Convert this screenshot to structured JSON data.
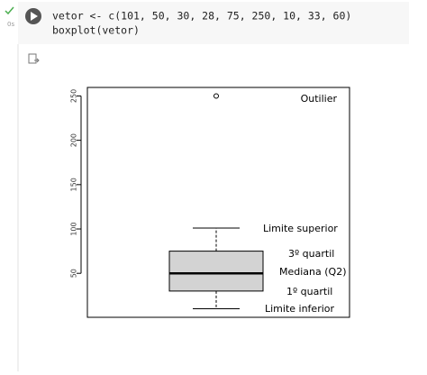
{
  "cell": {
    "status": "0s",
    "code": [
      "vetor <- c(101, 50, 30, 28, 75, 250, 10, 33, 60)",
      "boxplot(vetor)"
    ]
  },
  "chart_data": {
    "type": "boxplot",
    "boxes": [
      {
        "whisker_low": 10,
        "q1": 30,
        "median": 50,
        "q3": 75,
        "whisker_high": 101,
        "outliers": [
          250
        ]
      }
    ],
    "color": "#d3d3d3",
    "ylim": [
      0.4,
      259.6
    ],
    "yticks": [
      50,
      100,
      150,
      200,
      250
    ],
    "annotations": [
      "Outilier",
      "Limite superior",
      "3º quartil",
      "Mediana (Q2)",
      "1º quartil",
      "Limite inferior"
    ]
  }
}
